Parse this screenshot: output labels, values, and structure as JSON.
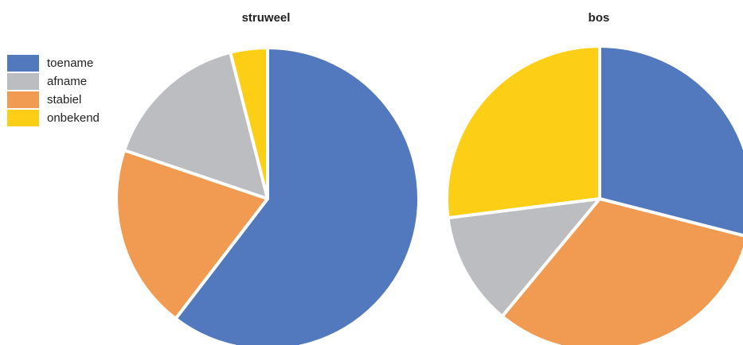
{
  "chart_data": [
    {
      "type": "pie",
      "title": "struweel",
      "categories": [
        "toename",
        "afname",
        "stabiel",
        "onbekend"
      ],
      "values": [
        61,
        16,
        20,
        4
      ],
      "unit": "%"
    },
    {
      "type": "pie",
      "title": "bos",
      "categories": [
        "toename",
        "afname",
        "stabiel",
        "onbekend"
      ],
      "values": [
        29,
        12,
        32,
        27
      ],
      "unit": "%"
    }
  ],
  "legend": {
    "position": "top-left",
    "items": [
      {
        "label": "toename",
        "color": "#5279bd"
      },
      {
        "label": "afname",
        "color": "#bcbdc0"
      },
      {
        "label": "stabiel",
        "color": "#f19a52"
      },
      {
        "label": "onbekend",
        "color": "#fccf16"
      }
    ]
  },
  "colors": {
    "toename": "#5279bd",
    "afname": "#bcbdc0",
    "stabiel": "#f19a52",
    "onbekend": "#fccf16"
  }
}
